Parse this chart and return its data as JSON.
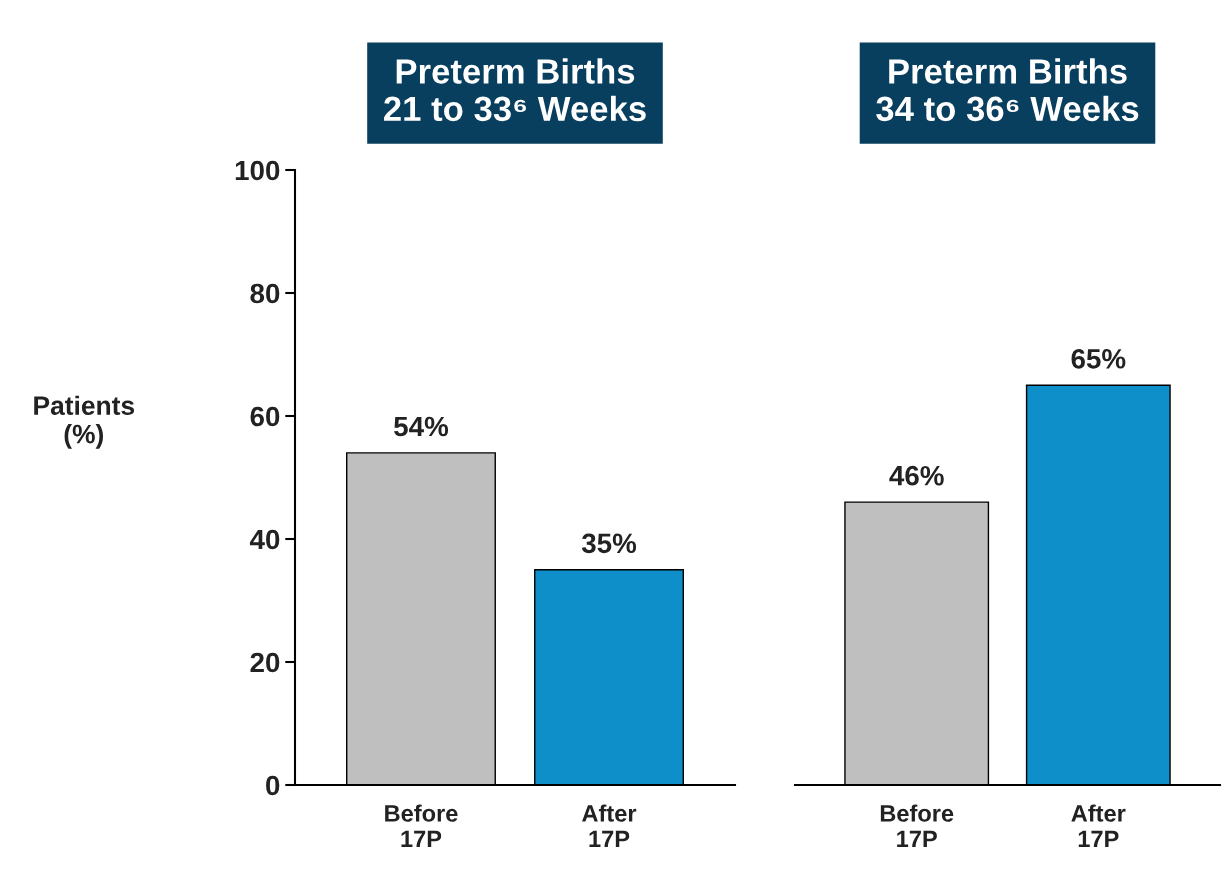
{
  "chart_data": [
    {
      "type": "bar",
      "title": "Preterm Births\n21 to 33⁶ Weeks",
      "ylabel": "Patients\n(%)",
      "categories": [
        "Before\n17P",
        "After\n17P"
      ],
      "values": [
        54,
        35
      ],
      "colors": [
        "#bfbfbf",
        "#0e8fc9"
      ],
      "value_labels": [
        "54%",
        "35%"
      ],
      "ylim": [
        0,
        100
      ],
      "yticks": [
        0,
        20,
        40,
        60,
        80,
        100
      ],
      "grid": false
    },
    {
      "type": "bar",
      "title": "Preterm Births\n34 to 36⁶ Weeks",
      "categories": [
        "Before\n17P",
        "After\n17P"
      ],
      "values": [
        46,
        65
      ],
      "colors": [
        "#bfbfbf",
        "#0e8fc9"
      ],
      "value_labels": [
        "46%",
        "65%"
      ],
      "ylim": [
        0,
        100
      ],
      "yticks": [
        0,
        20,
        40,
        60,
        80,
        100
      ],
      "tick_labels": "x",
      "grid": false
    }
  ]
}
